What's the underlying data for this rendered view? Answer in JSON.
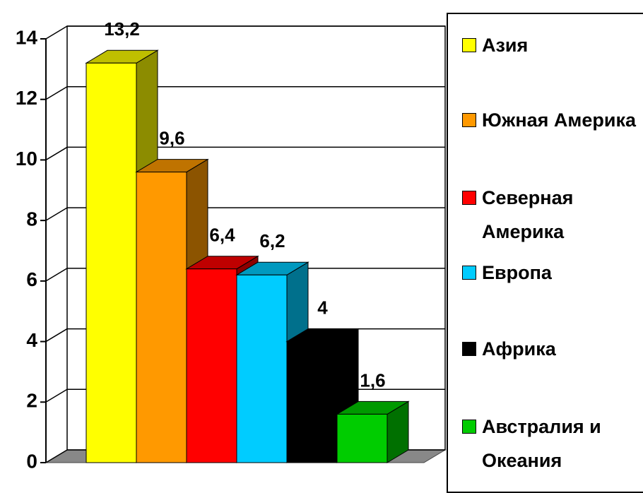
{
  "chart_data": {
    "type": "bar3d",
    "series": [
      {
        "name": "Азия",
        "color": "#ffff00",
        "values": [
          13.2
        ],
        "value_labels": [
          "13,2"
        ]
      },
      {
        "name": "Южная Америка",
        "color": "#ff9900",
        "values": [
          9.6
        ],
        "value_labels": [
          "9,6"
        ]
      },
      {
        "name": "Северная Америка",
        "color": "#ff0000",
        "values": [
          6.4
        ],
        "value_labels": [
          "6,4"
        ]
      },
      {
        "name": "Европа",
        "color": "#00ccff",
        "values": [
          6.2
        ],
        "value_labels": [
          "6,2"
        ]
      },
      {
        "name": "Африка",
        "color": "#000000",
        "values": [
          4
        ],
        "value_labels": [
          "4"
        ]
      },
      {
        "name": "Австралия и Океания",
        "color": "#00cc00",
        "values": [
          1.6
        ],
        "value_labels": [
          "1,6"
        ]
      }
    ],
    "ylim": [
      0,
      14
    ],
    "yticks": [
      0,
      2,
      4,
      6,
      8,
      10,
      12,
      14
    ],
    "grid": true,
    "legend": "right"
  }
}
